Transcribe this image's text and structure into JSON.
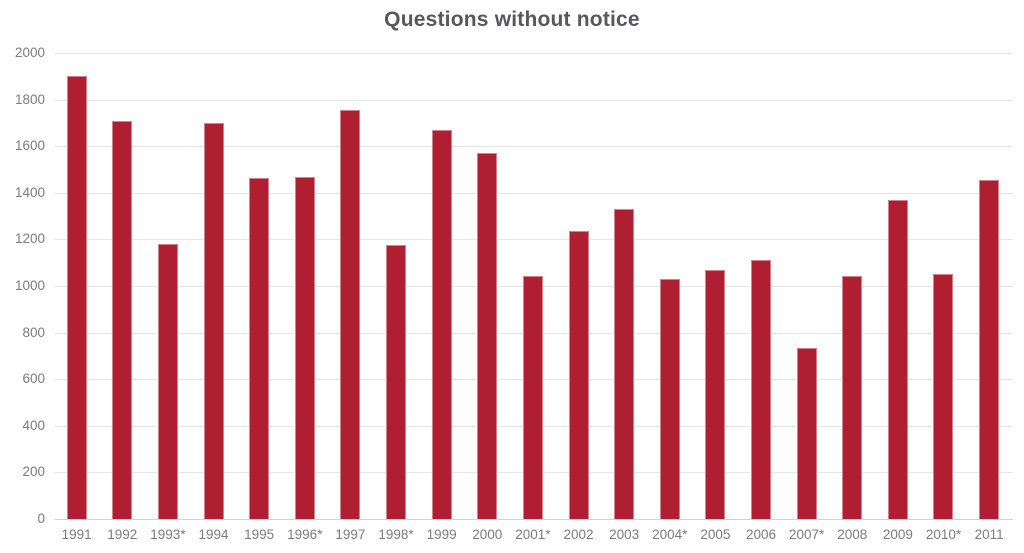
{
  "chart_data": {
    "type": "bar",
    "title": "Questions without notice",
    "categories": [
      "1991",
      "1992",
      "1993*",
      "1994",
      "1995",
      "1996*",
      "1997",
      "1998*",
      "1999",
      "2000",
      "2001*",
      "2002",
      "2003",
      "2004*",
      "2005",
      "2006",
      "2007*",
      "2008",
      "2009",
      "2010*",
      "2011"
    ],
    "values": [
      1900,
      1710,
      1180,
      1700,
      1465,
      1470,
      1755,
      1175,
      1670,
      1570,
      1045,
      1235,
      1330,
      1030,
      1070,
      1110,
      735,
      1045,
      1370,
      1050,
      1455
    ],
    "xlabel": "",
    "ylabel": "",
    "ylim": [
      0,
      2000
    ],
    "ytick_step": 200,
    "grid": true,
    "legend": "none"
  },
  "colors": {
    "bar_fill": "#B01E32",
    "title": "#58585B",
    "axis_label": "#7C7C7F",
    "gridline": "#E6E6E6",
    "baseline": "#D2D2D2",
    "background": "#FFFFFF"
  }
}
